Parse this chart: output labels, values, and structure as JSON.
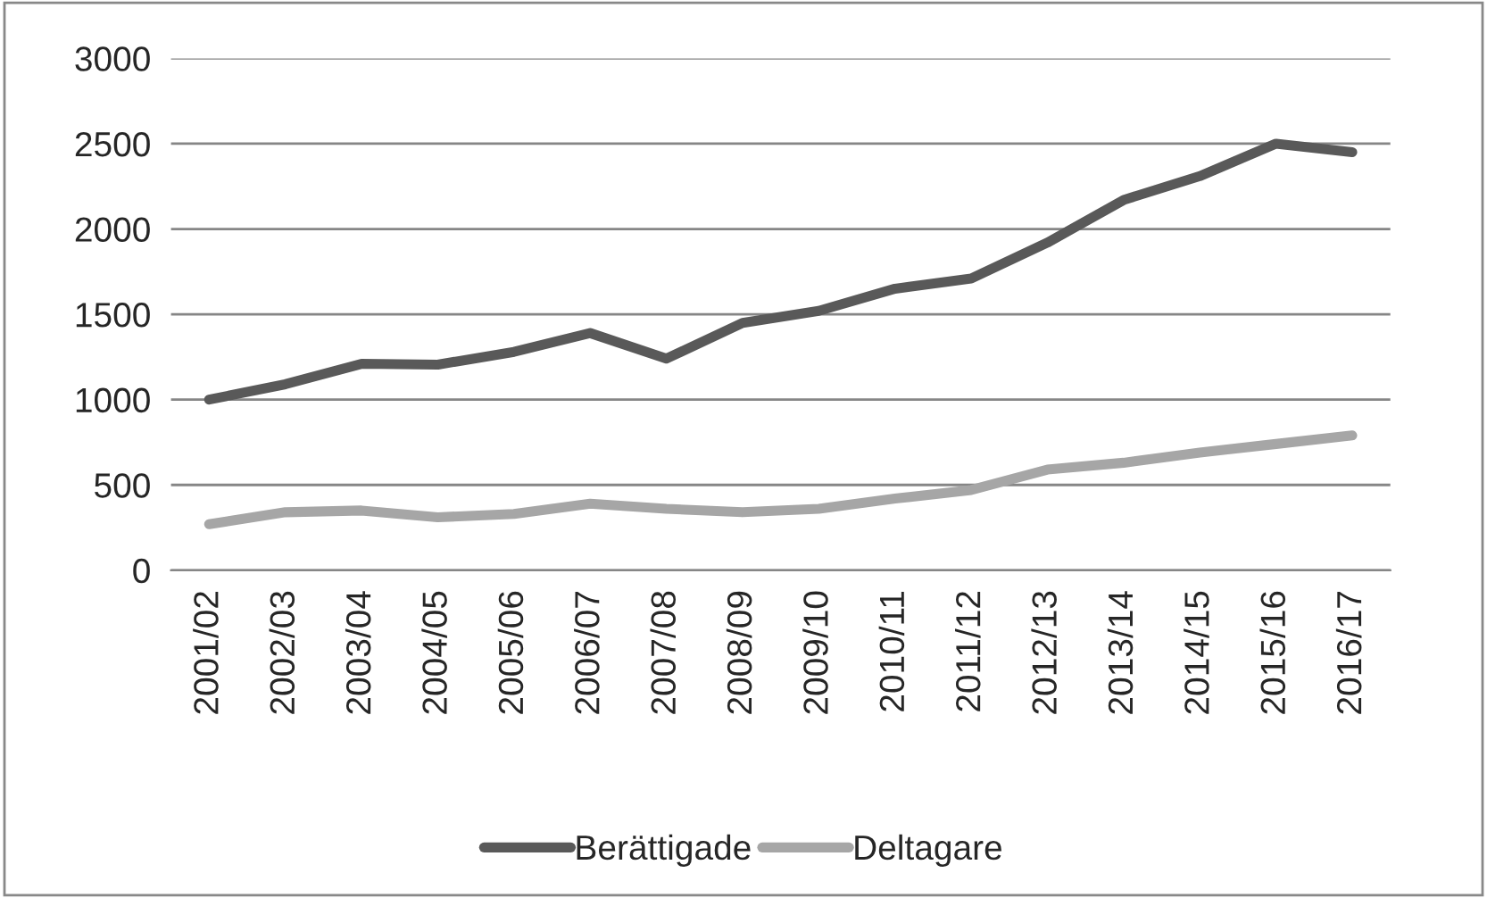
{
  "chart_data": {
    "type": "line",
    "categories": [
      "2001/02",
      "2002/03",
      "2003/04",
      "2004/05",
      "2005/06",
      "2006/07",
      "2007/08",
      "2008/09",
      "2009/10",
      "2010/11",
      "2011/12",
      "2012/13",
      "2013/14",
      "2014/15",
      "2015/16",
      "2016/17"
    ],
    "series": [
      {
        "name": "Berättigade",
        "color": "#595959",
        "values": [
          1000,
          1090,
          1210,
          1205,
          1280,
          1390,
          1240,
          1450,
          1520,
          1650,
          1710,
          1920,
          2170,
          2310,
          2500,
          2450
        ]
      },
      {
        "name": "Deltagare",
        "color": "#a6a6a6",
        "values": [
          270,
          340,
          350,
          310,
          330,
          390,
          360,
          340,
          360,
          420,
          470,
          590,
          630,
          690,
          740,
          790
        ]
      }
    ],
    "ylim": [
      0,
      3000
    ],
    "yticks": [
      0,
      500,
      1000,
      1500,
      2000,
      2500,
      3000
    ],
    "grid": "y",
    "legend": "bottom",
    "marker": "none",
    "line_style": "solid"
  }
}
